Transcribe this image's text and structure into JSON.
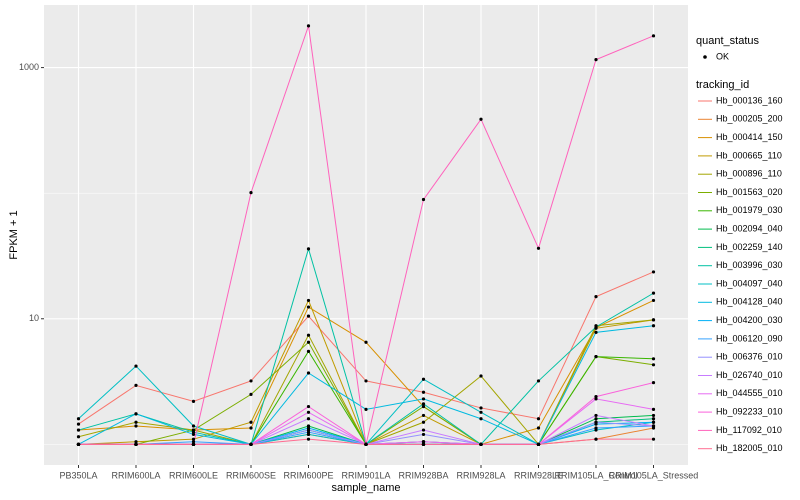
{
  "chart_data": {
    "type": "line",
    "x_label": "sample_name",
    "y_label": "FPKM + 1",
    "categories": [
      "PB350LA",
      "RRIM600LA",
      "RRIM600LE",
      "RRIM600SE",
      "RRIM600PE",
      "RRIM901LA",
      "RRIM928BA",
      "RRIM928LA",
      "RRIM928LE",
      "RRIM105LA_Control",
      "RRIM105LA_Stressed"
    ],
    "log_y": true,
    "grid": true,
    "ylim": [
      0.685,
      3150
    ],
    "yticks": [
      10,
      1000
    ],
    "minor_yticks": [
      1,
      100
    ],
    "point_legend_title": "quant_status",
    "point_legend_label": "OK",
    "point_color": "#000000",
    "legend_title": "tracking_id",
    "series": [
      {
        "name": "Hb_000136_160",
        "color": "#F8766D",
        "values": [
          1.45,
          2.95,
          2.2,
          3.2,
          10.5,
          3.2,
          2.6,
          1.95,
          1.6,
          15,
          23.6
        ]
      },
      {
        "name": "Hb_000205_200",
        "color": "#EA8331",
        "values": [
          1.0,
          1.0,
          1.0,
          1.0,
          1.2,
          1.0,
          1.05,
          1.0,
          1.0,
          1.1,
          1.35
        ]
      },
      {
        "name": "Hb_000414_150",
        "color": "#D89000",
        "values": [
          1.3,
          1.4,
          1.3,
          1.35,
          12.4,
          6.5,
          2.0,
          1.0,
          1.35,
          8.5,
          14
        ]
      },
      {
        "name": "Hb_000665_110",
        "color": "#C09B00",
        "values": [
          1.0,
          1.05,
          1.1,
          1.5,
          14,
          1.0,
          1.7,
          1.0,
          1.0,
          8.4,
          9.8
        ]
      },
      {
        "name": "Hb_000896_110",
        "color": "#A3A500",
        "values": [
          1.15,
          1.5,
          1.3,
          1.0,
          7.4,
          1.0,
          1.5,
          3.5,
          1.0,
          8.8,
          9.8
        ]
      },
      {
        "name": "Hb_001563_020",
        "color": "#7CAE00",
        "values": [
          1.0,
          1.0,
          1.3,
          2.5,
          6.5,
          1.0,
          2.0,
          1.0,
          1.0,
          5.0,
          4.3
        ]
      },
      {
        "name": "Hb_001979_030",
        "color": "#39B600",
        "values": [
          1.0,
          1.0,
          1.0,
          1.0,
          5.5,
          1.0,
          1.0,
          1.0,
          1.0,
          5.0,
          4.8
        ]
      },
      {
        "name": "Hb_002094_040",
        "color": "#00BB4E",
        "values": [
          1.0,
          1.0,
          1.0,
          1.0,
          1.4,
          1.0,
          1.0,
          1.0,
          1.0,
          1.6,
          1.7
        ]
      },
      {
        "name": "Hb_002259_140",
        "color": "#00BF7D",
        "values": [
          1.0,
          1.0,
          1.0,
          1.0,
          1.3,
          1.0,
          1.0,
          1.0,
          1.0,
          1.5,
          1.6
        ]
      },
      {
        "name": "Hb_003996_030",
        "color": "#00C1A3",
        "values": [
          1.3,
          1.75,
          1.25,
          1.0,
          36,
          1.0,
          2.1,
          1.0,
          3.2,
          8.6,
          16
        ]
      },
      {
        "name": "Hb_004097_040",
        "color": "#00BFC4",
        "values": [
          1.6,
          4.2,
          1.4,
          1.0,
          1.2,
          1.0,
          3.3,
          1.8,
          1.0,
          1.3,
          1.5
        ]
      },
      {
        "name": "Hb_004128_040",
        "color": "#00BAE0",
        "values": [
          1.0,
          1.75,
          1.2,
          1.0,
          3.7,
          1.9,
          2.3,
          1.6,
          1.0,
          7.8,
          8.8
        ]
      },
      {
        "name": "Hb_004200_030",
        "color": "#00B0F6",
        "values": [
          1.0,
          1.0,
          1.0,
          1.0,
          1.35,
          1.0,
          1.0,
          1.0,
          1.0,
          1.45,
          1.5
        ]
      },
      {
        "name": "Hb_006120_090",
        "color": "#35A2FF",
        "values": [
          1.0,
          1.0,
          1.05,
          1.0,
          1.25,
          1.0,
          1.05,
          1.0,
          1.0,
          1.35,
          1.4
        ]
      },
      {
        "name": "Hb_006376_010",
        "color": "#9590FF",
        "values": [
          1.0,
          1.0,
          1.0,
          1.0,
          1.3,
          1.0,
          1.2,
          1.0,
          1.0,
          1.5,
          1.4
        ]
      },
      {
        "name": "Hb_026740_010",
        "color": "#C77CFF",
        "values": [
          1.0,
          1.0,
          1.0,
          1.0,
          1.6,
          1.0,
          1.3,
          1.0,
          1.0,
          1.7,
          1.4
        ]
      },
      {
        "name": "Hb_044555_010",
        "color": "#E76BF3",
        "values": [
          1.0,
          1.0,
          1.0,
          1.0,
          1.8,
          1.0,
          1.05,
          1.0,
          1.0,
          2.3,
          1.9
        ]
      },
      {
        "name": "Hb_092233_010",
        "color": "#FA62DB",
        "values": [
          1.0,
          1.0,
          1.0,
          1.0,
          2.0,
          1.0,
          1.0,
          1.0,
          1.0,
          2.4,
          3.1
        ]
      },
      {
        "name": "Hb_117092_010",
        "color": "#FF62BC",
        "values": [
          1.0,
          1.0,
          1.0,
          101,
          2148,
          1.0,
          89,
          388,
          36.4,
          1157,
          1790
        ]
      },
      {
        "name": "Hb_182005_010",
        "color": "#FF6C91",
        "values": [
          1.0,
          1.0,
          1.0,
          1.0,
          1.1,
          1.0,
          1.0,
          1.0,
          1.0,
          1.1,
          1.1
        ]
      }
    ]
  }
}
